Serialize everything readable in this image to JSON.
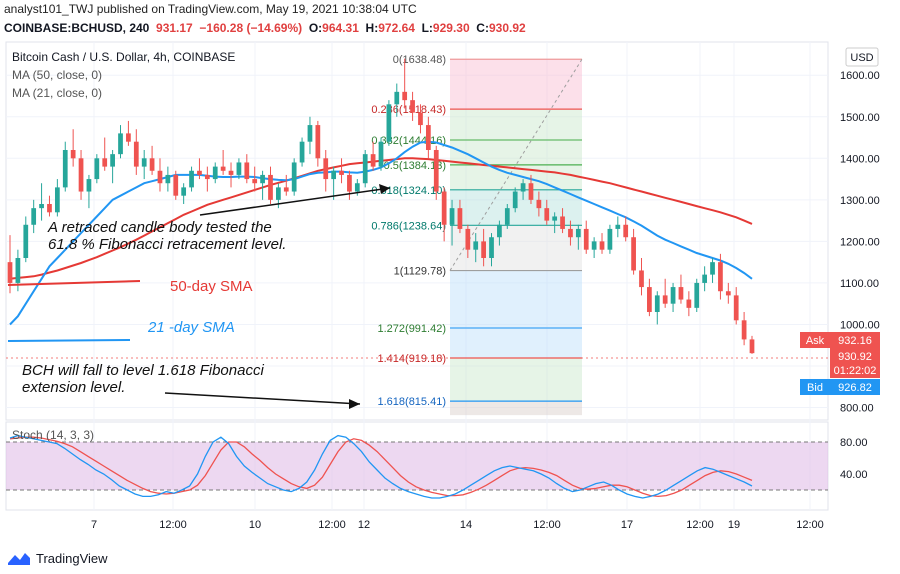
{
  "header": {
    "publish_line": "analyst101_TWJ published on TradingView.com, May 19, 2021 10:38:04 UTC",
    "symbol": "COINBASE:BCHUSD, 240",
    "last": "931.17",
    "change": "−160.28 (−14.69%)",
    "o_label": "O:",
    "o": "964.31",
    "h_label": "H:",
    "h": "972.64",
    "l_label": "L:",
    "l": "929.30",
    "c_label": "C:",
    "c": "930.92"
  },
  "legend": {
    "title": "Bitcoin Cash / U.S. Dollar, 4h, COINBASE",
    "ma50": "MA (50, close, 0)",
    "ma21": "MA (21, close, 0)"
  },
  "currency_button": "USD",
  "annotations": {
    "retrace_line1": "A retraced candle body  tested the",
    "retrace_line2": "61.8 % Fibonacci retracement level.",
    "sma50": "50-day SMA",
    "sma21": "21 -day SMA",
    "bch_line1": "BCH will fall to level 1.618 Fibonacci",
    "bch_line2": "extension level."
  },
  "price_tags": {
    "ask_label": "Ask",
    "ask": "932.16",
    "last": "930.92",
    "countdown": "01:22:02",
    "bid_label": "Bid",
    "bid": "926.82"
  },
  "stoch_label": "Stoch (14, 3, 3)",
  "footer_brand": "TradingView",
  "colors": {
    "up": "#26a69a",
    "down": "#ef5350",
    "ma21": "#2196f3",
    "ma50": "#e53935",
    "stoch_k": "#2196f3",
    "stoch_d": "#ef5350",
    "stoch_band": "#e1bee7"
  },
  "chart_data": {
    "type": "candlestick",
    "y_axis": {
      "ticks": [
        800,
        900,
        1000,
        1100,
        1200,
        1300,
        1400,
        1500,
        1600
      ],
      "labels": [
        "800.00",
        "900.00",
        "1000.00",
        "1100.00",
        "1200.00",
        "1300.00",
        "1400.00",
        "1500.00",
        "1600.00"
      ],
      "range": [
        770,
        1680
      ]
    },
    "x_axis": {
      "labels": [
        "7",
        "12:00",
        "10",
        "12:00",
        "12",
        "14",
        "12:00",
        "17",
        "12:00",
        "19",
        "12:00"
      ]
    },
    "candles": [
      [
        1150,
        1215,
        1075,
        1100
      ],
      [
        1100,
        1180,
        1080,
        1160
      ],
      [
        1160,
        1260,
        1150,
        1240
      ],
      [
        1240,
        1300,
        1220,
        1280
      ],
      [
        1280,
        1340,
        1250,
        1290
      ],
      [
        1290,
        1310,
        1260,
        1270
      ],
      [
        1270,
        1350,
        1260,
        1330
      ],
      [
        1330,
        1440,
        1320,
        1420
      ],
      [
        1420,
        1470,
        1380,
        1400
      ],
      [
        1400,
        1420,
        1300,
        1320
      ],
      [
        1320,
        1360,
        1280,
        1350
      ],
      [
        1350,
        1410,
        1340,
        1400
      ],
      [
        1400,
        1450,
        1370,
        1380
      ],
      [
        1380,
        1420,
        1340,
        1410
      ],
      [
        1410,
        1480,
        1400,
        1460
      ],
      [
        1460,
        1490,
        1430,
        1440
      ],
      [
        1440,
        1470,
        1360,
        1380
      ],
      [
        1380,
        1420,
        1350,
        1400
      ],
      [
        1400,
        1430,
        1360,
        1370
      ],
      [
        1370,
        1400,
        1320,
        1340
      ],
      [
        1340,
        1380,
        1320,
        1360
      ],
      [
        1360,
        1370,
        1300,
        1310
      ],
      [
        1310,
        1340,
        1290,
        1330
      ],
      [
        1330,
        1380,
        1320,
        1370
      ],
      [
        1370,
        1400,
        1350,
        1360
      ],
      [
        1360,
        1380,
        1320,
        1350
      ],
      [
        1350,
        1390,
        1340,
        1380
      ],
      [
        1380,
        1420,
        1360,
        1370
      ],
      [
        1370,
        1390,
        1330,
        1360
      ],
      [
        1360,
        1400,
        1350,
        1390
      ],
      [
        1390,
        1410,
        1340,
        1350
      ],
      [
        1350,
        1380,
        1320,
        1340
      ],
      [
        1340,
        1370,
        1300,
        1360
      ],
      [
        1360,
        1380,
        1290,
        1300
      ],
      [
        1300,
        1340,
        1280,
        1330
      ],
      [
        1330,
        1360,
        1310,
        1320
      ],
      [
        1320,
        1400,
        1310,
        1390
      ],
      [
        1390,
        1450,
        1380,
        1440
      ],
      [
        1440,
        1500,
        1410,
        1480
      ],
      [
        1480,
        1490,
        1380,
        1400
      ],
      [
        1400,
        1420,
        1320,
        1350
      ],
      [
        1350,
        1380,
        1300,
        1370
      ],
      [
        1370,
        1400,
        1340,
        1360
      ],
      [
        1360,
        1370,
        1300,
        1320
      ],
      [
        1320,
        1350,
        1310,
        1340
      ],
      [
        1340,
        1420,
        1330,
        1410
      ],
      [
        1410,
        1440,
        1370,
        1380
      ],
      [
        1380,
        1450,
        1370,
        1440
      ],
      [
        1440,
        1540,
        1430,
        1530
      ],
      [
        1530,
        1580,
        1500,
        1560
      ],
      [
        1560,
        1640,
        1520,
        1540
      ],
      [
        1540,
        1560,
        1490,
        1510
      ],
      [
        1510,
        1530,
        1460,
        1480
      ],
      [
        1480,
        1500,
        1400,
        1420
      ],
      [
        1420,
        1430,
        1300,
        1320
      ],
      [
        1320,
        1330,
        1200,
        1240
      ],
      [
        1240,
        1300,
        1190,
        1280
      ],
      [
        1280,
        1300,
        1220,
        1230
      ],
      [
        1230,
        1240,
        1160,
        1180
      ],
      [
        1180,
        1220,
        1150,
        1200
      ],
      [
        1200,
        1230,
        1140,
        1160
      ],
      [
        1160,
        1220,
        1140,
        1210
      ],
      [
        1210,
        1250,
        1190,
        1240
      ],
      [
        1240,
        1290,
        1230,
        1280
      ],
      [
        1280,
        1330,
        1270,
        1320
      ],
      [
        1320,
        1350,
        1300,
        1340
      ],
      [
        1340,
        1360,
        1290,
        1300
      ],
      [
        1300,
        1320,
        1260,
        1280
      ],
      [
        1280,
        1300,
        1240,
        1250
      ],
      [
        1250,
        1270,
        1220,
        1260
      ],
      [
        1260,
        1280,
        1220,
        1230
      ],
      [
        1230,
        1250,
        1190,
        1210
      ],
      [
        1210,
        1240,
        1180,
        1230
      ],
      [
        1230,
        1250,
        1170,
        1180
      ],
      [
        1180,
        1210,
        1160,
        1200
      ],
      [
        1200,
        1220,
        1170,
        1180
      ],
      [
        1180,
        1240,
        1170,
        1230
      ],
      [
        1230,
        1260,
        1210,
        1240
      ],
      [
        1240,
        1260,
        1200,
        1210
      ],
      [
        1210,
        1230,
        1120,
        1130
      ],
      [
        1130,
        1160,
        1070,
        1090
      ],
      [
        1090,
        1110,
        1020,
        1030
      ],
      [
        1030,
        1080,
        1000,
        1070
      ],
      [
        1070,
        1110,
        1040,
        1050
      ],
      [
        1050,
        1100,
        1030,
        1090
      ],
      [
        1090,
        1120,
        1050,
        1060
      ],
      [
        1060,
        1080,
        1020,
        1040
      ],
      [
        1040,
        1110,
        1030,
        1100
      ],
      [
        1100,
        1140,
        1080,
        1120
      ],
      [
        1120,
        1160,
        1100,
        1150
      ],
      [
        1150,
        1170,
        1060,
        1080
      ],
      [
        1080,
        1100,
        1050,
        1070
      ],
      [
        1070,
        1090,
        1000,
        1010
      ],
      [
        1010,
        1030,
        950,
        964
      ],
      [
        964,
        972.64,
        929.3,
        930.92
      ]
    ],
    "ma21": [
      1000,
      1020,
      1050,
      1080,
      1110,
      1140,
      1160,
      1180,
      1200,
      1220,
      1240,
      1260,
      1280,
      1300,
      1310,
      1320,
      1330,
      1340,
      1345,
      1350,
      1355,
      1360,
      1360,
      1360,
      1360,
      1358,
      1356,
      1355,
      1355,
      1356,
      1356,
      1355,
      1352,
      1350,
      1348,
      1347,
      1350,
      1356,
      1362,
      1365,
      1366,
      1368,
      1368,
      1366,
      1365,
      1368,
      1372,
      1378,
      1388,
      1400,
      1415,
      1428,
      1438,
      1440,
      1438,
      1432,
      1426,
      1418,
      1410,
      1400,
      1390,
      1380,
      1372,
      1365,
      1360,
      1355,
      1350,
      1345,
      1338,
      1330,
      1322,
      1314,
      1306,
      1298,
      1290,
      1282,
      1274,
      1266,
      1258,
      1248,
      1238,
      1226,
      1214,
      1204,
      1196,
      1188,
      1180,
      1172,
      1166,
      1160,
      1154,
      1146,
      1136,
      1124,
      1110
    ],
    "ma50": [
      1110,
      1112,
      1114,
      1116,
      1120,
      1125,
      1130,
      1136,
      1142,
      1148,
      1155,
      1162,
      1170,
      1178,
      1186,
      1195,
      1204,
      1214,
      1224,
      1234,
      1244,
      1254,
      1264,
      1272,
      1280,
      1288,
      1294,
      1300,
      1306,
      1312,
      1318,
      1324,
      1330,
      1336,
      1341,
      1346,
      1352,
      1358,
      1364,
      1370,
      1374,
      1378,
      1382,
      1386,
      1388,
      1390,
      1392,
      1394,
      1396,
      1398,
      1400,
      1400,
      1399,
      1398,
      1396,
      1394,
      1392,
      1390,
      1388,
      1386,
      1384,
      1382,
      1380,
      1378,
      1376,
      1374,
      1372,
      1370,
      1368,
      1366,
      1363,
      1360,
      1356,
      1352,
      1348,
      1344,
      1340,
      1335,
      1330,
      1325,
      1320,
      1315,
      1310,
      1305,
      1300,
      1295,
      1290,
      1285,
      1280,
      1275,
      1270,
      1264,
      1258,
      1250,
      1242
    ],
    "fibonacci": [
      {
        "label": "0(1638.48)",
        "value": 1638.48
      },
      {
        "label": "0.236(1518.43)",
        "value": 1518.43
      },
      {
        "label": "0.382(1444.16)",
        "value": 1444.16
      },
      {
        "label": "0.5(1384.13)",
        "value": 1384.13
      },
      {
        "label": "0.618(1324.10)",
        "value": 1324.1
      },
      {
        "label": "0.786(1238.64)",
        "value": 1238.64
      },
      {
        "label": "1(1129.78)",
        "value": 1129.78
      },
      {
        "label": "1.272(991.42)",
        "value": 991.42
      },
      {
        "label": "1.414(919.18)",
        "value": 919.18
      },
      {
        "label": "1.618(815.41)",
        "value": 815.41
      }
    ],
    "stoch": {
      "ticks": [
        40,
        80
      ],
      "labels": [
        "40.00",
        "80.00"
      ],
      "range": [
        0,
        100
      ],
      "k": [
        85,
        88,
        86,
        84,
        82,
        80,
        78,
        72,
        65,
        58,
        52,
        45,
        40,
        33,
        25,
        20,
        15,
        12,
        12,
        14,
        18,
        16,
        20,
        25,
        40,
        62,
        80,
        86,
        78,
        62,
        50,
        42,
        35,
        28,
        24,
        20,
        18,
        22,
        30,
        45,
        65,
        82,
        88,
        86,
        78,
        68,
        55,
        45,
        35,
        28,
        22,
        18,
        15,
        12,
        10,
        10,
        12,
        15,
        20,
        26,
        32,
        38,
        44,
        48,
        50,
        48,
        46,
        44,
        40,
        35,
        28,
        22,
        18,
        20,
        24,
        28,
        30,
        26,
        20,
        15,
        12,
        10,
        12,
        15,
        20,
        26,
        32,
        38,
        44,
        48,
        46,
        42,
        38,
        34,
        30,
        25
      ],
      "d": [
        84,
        85,
        86,
        86,
        85,
        83,
        81,
        78,
        74,
        68,
        62,
        56,
        50,
        44,
        38,
        32,
        27,
        22,
        18,
        16,
        15,
        16,
        18,
        20,
        26,
        38,
        54,
        70,
        80,
        80,
        74,
        65,
        57,
        48,
        40,
        34,
        28,
        24,
        22,
        26,
        36,
        52,
        68,
        80,
        84,
        82,
        76,
        68,
        58,
        48,
        38,
        30,
        24,
        20,
        17,
        15,
        13,
        13,
        14,
        17,
        21,
        26,
        32,
        38,
        44,
        47,
        48,
        47,
        45,
        42,
        38,
        32,
        26,
        22,
        21,
        22,
        24,
        26,
        26,
        24,
        20,
        16,
        13,
        12,
        13,
        16,
        20,
        26,
        32,
        38,
        42,
        44,
        43,
        40,
        36,
        32
      ]
    }
  }
}
